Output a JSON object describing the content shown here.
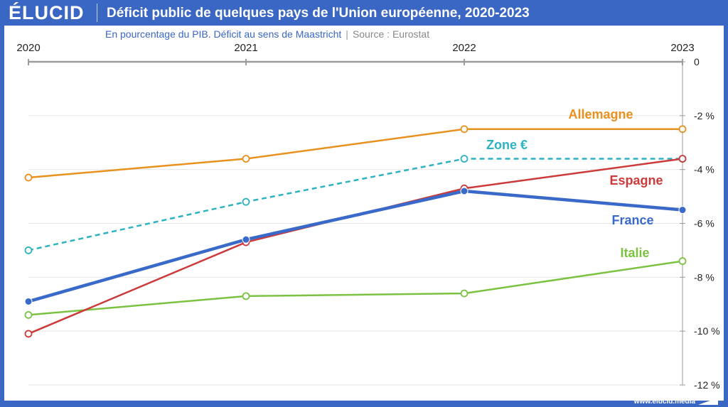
{
  "header": {
    "logo": "ÉLUCID",
    "title": "Déficit public de quelques pays de l'Union européenne, 2020-2023"
  },
  "subtitle": {
    "description": "En pourcentage du PIB. Déficit au sens de Maastricht",
    "separator": "|",
    "source": "Source : Eurostat"
  },
  "footer": {
    "url": "www.elucid.media"
  },
  "chart_data": {
    "type": "line",
    "x": [
      "2020",
      "2021",
      "2022",
      "2023"
    ],
    "ylim": [
      -12,
      0
    ],
    "yticks": [
      0,
      -2,
      -4,
      -6,
      -8,
      -10,
      -12
    ],
    "ytick_labels": [
      "0",
      "-2 %",
      "-4 %",
      "-6 %",
      "-8 %",
      "-10 %",
      "-12 %"
    ],
    "grid": true,
    "series": [
      {
        "name": "Allemagne",
        "color": "#e8911f",
        "dashed": false,
        "bold": false,
        "values": [
          -4.3,
          -3.6,
          -2.5,
          -2.5
        ]
      },
      {
        "name": "Zone €",
        "color": "#2db3bf",
        "dashed": true,
        "bold": false,
        "values": [
          -7.0,
          -5.2,
          -3.6,
          -3.6
        ]
      },
      {
        "name": "Espagne",
        "color": "#cc3a3a",
        "dashed": false,
        "bold": false,
        "values": [
          -10.1,
          -6.7,
          -4.7,
          -3.6
        ]
      },
      {
        "name": "France",
        "color": "#3a6ac9",
        "dashed": false,
        "bold": true,
        "values": [
          -8.9,
          -6.6,
          -4.8,
          -5.5
        ]
      },
      {
        "name": "Italie",
        "color": "#7cc242",
        "dashed": false,
        "bold": false,
        "values": [
          -9.4,
          -8.7,
          -8.6,
          -7.4
        ]
      }
    ]
  }
}
